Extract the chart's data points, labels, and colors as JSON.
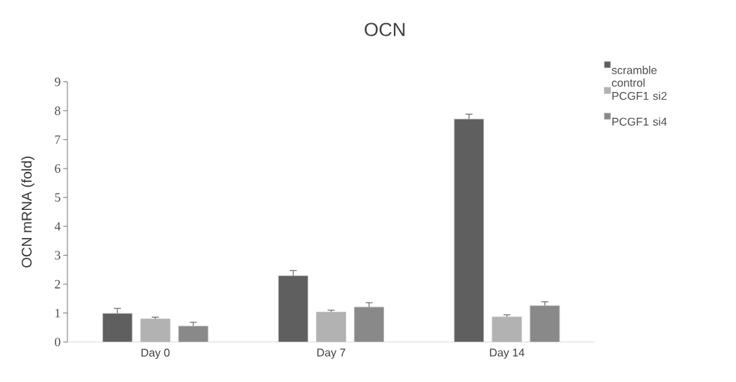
{
  "chart_data": {
    "type": "bar",
    "title": "OCN",
    "ylabel": "OCN mRNA (fold)",
    "categories": [
      "Day 0",
      "Day 7",
      "Day 14"
    ],
    "series": [
      {
        "name": "scramble control",
        "color": "#5f5f5f",
        "values": [
          0.99,
          2.29,
          7.71
        ],
        "errors": [
          [
            0.99,
            1.16
          ],
          [
            2.29,
            2.47
          ],
          [
            7.71,
            7.88
          ]
        ]
      },
      {
        "name": "PCGF1 si2",
        "color": "#b2b2b2",
        "values": [
          0.8,
          1.04,
          0.87
        ],
        "errors": [
          [
            0.8,
            0.86
          ],
          [
            1.04,
            1.1
          ],
          [
            0.87,
            0.94
          ]
        ]
      },
      {
        "name": "PCGF1 si4",
        "color": "#898989",
        "values": [
          0.55,
          1.21,
          1.26
        ],
        "errors": [
          [
            0.55,
            0.68
          ],
          [
            1.21,
            1.36
          ],
          [
            1.26,
            1.39
          ]
        ]
      }
    ],
    "ylim": [
      0,
      9
    ],
    "yticks": [
      0,
      1,
      2,
      3,
      4,
      5,
      6,
      7,
      8,
      9
    ],
    "grid": false,
    "legend": "top right"
  }
}
